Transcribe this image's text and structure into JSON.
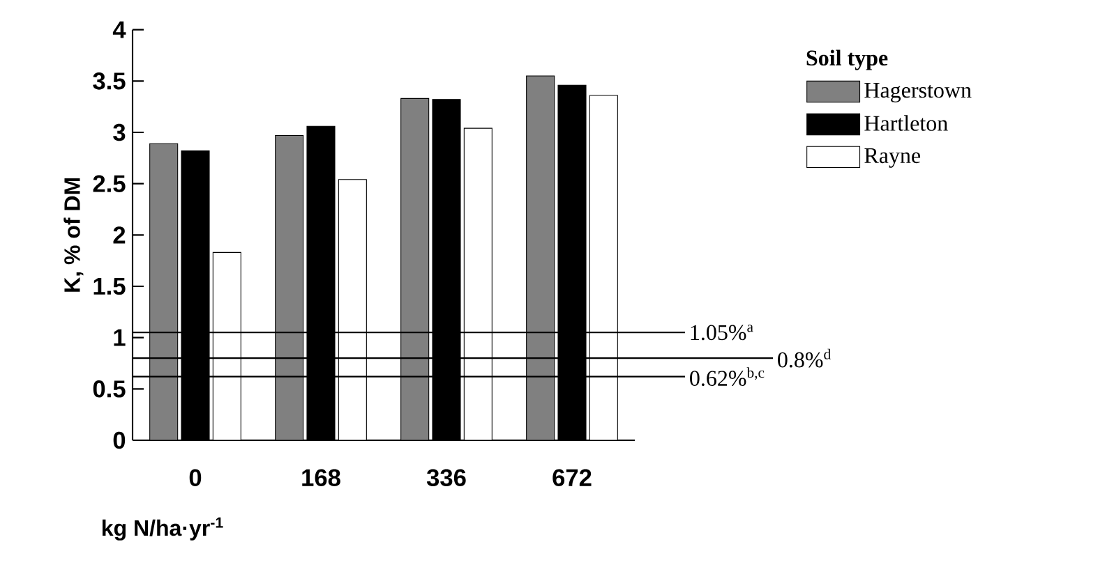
{
  "chart_data": {
    "type": "bar",
    "xlabel": "kg N/ha·yr$^{-1}$",
    "ylabel": "K, % of DM",
    "legend_title": "Soil type",
    "categories": [
      "0",
      "168",
      "336",
      "672"
    ],
    "series": [
      {
        "name": "Hagerstown",
        "color": "#808080",
        "values": [
          2.89,
          2.97,
          3.33,
          3.55
        ]
      },
      {
        "name": "Hartleton",
        "color": "#000000",
        "values": [
          2.82,
          3.06,
          3.32,
          3.46
        ]
      },
      {
        "name": "Rayne",
        "color": "#ffffff",
        "values": [
          1.83,
          2.54,
          3.04,
          3.36
        ]
      }
    ],
    "ylim": [
      0,
      4
    ],
    "yticks": [
      0,
      0.5,
      1,
      1.5,
      2,
      2.5,
      3,
      3.5,
      4
    ],
    "ref_lines": [
      {
        "axis": "y",
        "value": 1.05,
        "label": "1.05%$^{a}$"
      },
      {
        "axis": "y",
        "value": 0.8,
        "label": "0.8%$^{d}$"
      },
      {
        "axis": "y",
        "value": 0.62,
        "label": "0.62%$^{b,c}$"
      }
    ],
    "legend": "right",
    "grid": false
  }
}
